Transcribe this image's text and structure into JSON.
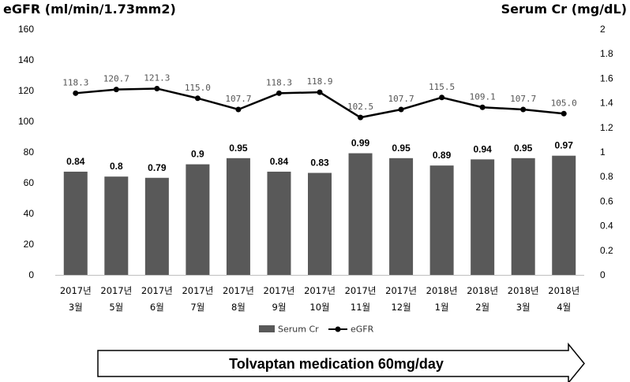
{
  "chart_data": {
    "type": "bar",
    "title": "",
    "y_left_label": "eGFR (ml/min/1.73mm2)",
    "y_right_label": "Serum Cr (mg/dL)",
    "y_left_ticks": [
      "0",
      "20",
      "40",
      "60",
      "80",
      "100",
      "120",
      "140",
      "160"
    ],
    "y_right_ticks": [
      "0",
      "0.2",
      "0.4",
      "0.6",
      "0.8",
      "1",
      "1.2",
      "1.4",
      "1.6",
      "1.8",
      "2"
    ],
    "ylim_left": [
      0,
      160
    ],
    "ylim_right": [
      0,
      2
    ],
    "categories": [
      {
        "year": "2017년",
        "month": "3월"
      },
      {
        "year": "2017년",
        "month": "5월"
      },
      {
        "year": "2017년",
        "month": "6월"
      },
      {
        "year": "2017년",
        "month": "7월"
      },
      {
        "year": "2017년",
        "month": "8월"
      },
      {
        "year": "2017년",
        "month": "9월"
      },
      {
        "year": "2017년",
        "month": "10월"
      },
      {
        "year": "2017년",
        "month": "11월"
      },
      {
        "year": "2017년",
        "month": "12월"
      },
      {
        "year": "2018년",
        "month": "1월"
      },
      {
        "year": "2018년",
        "month": "2월"
      },
      {
        "year": "2018년",
        "month": "3월"
      },
      {
        "year": "2018년",
        "month": "4월"
      }
    ],
    "series": [
      {
        "name": "Serum Cr",
        "kind": "bar",
        "axis": "right",
        "color": "#595959",
        "values": [
          0.84,
          0.8,
          0.79,
          0.9,
          0.95,
          0.84,
          0.83,
          0.99,
          0.95,
          0.89,
          0.94,
          0.95,
          0.97
        ],
        "labels": [
          "0.84",
          "0.8",
          "0.79",
          "0.9",
          "0.95",
          "0.84",
          "0.83",
          "0.99",
          "0.95",
          "0.89",
          "0.94",
          "0.95",
          "0.97"
        ]
      },
      {
        "name": "eGFR",
        "kind": "line",
        "axis": "left",
        "color": "#000000",
        "values": [
          118.3,
          120.7,
          121.3,
          115.0,
          107.7,
          118.3,
          118.9,
          102.5,
          107.7,
          115.5,
          109.1,
          107.7,
          105.0
        ],
        "labels": [
          "118.3",
          "120.7",
          "121.3",
          "115.0",
          "107.7",
          "118.3",
          "118.9",
          "102.5",
          "107.7",
          "115.5",
          "109.1",
          "107.7",
          "105.0"
        ]
      }
    ],
    "legend_position": "bottom",
    "grid": false,
    "arrow_label": "Tolvaptan medication 60mg/day"
  }
}
